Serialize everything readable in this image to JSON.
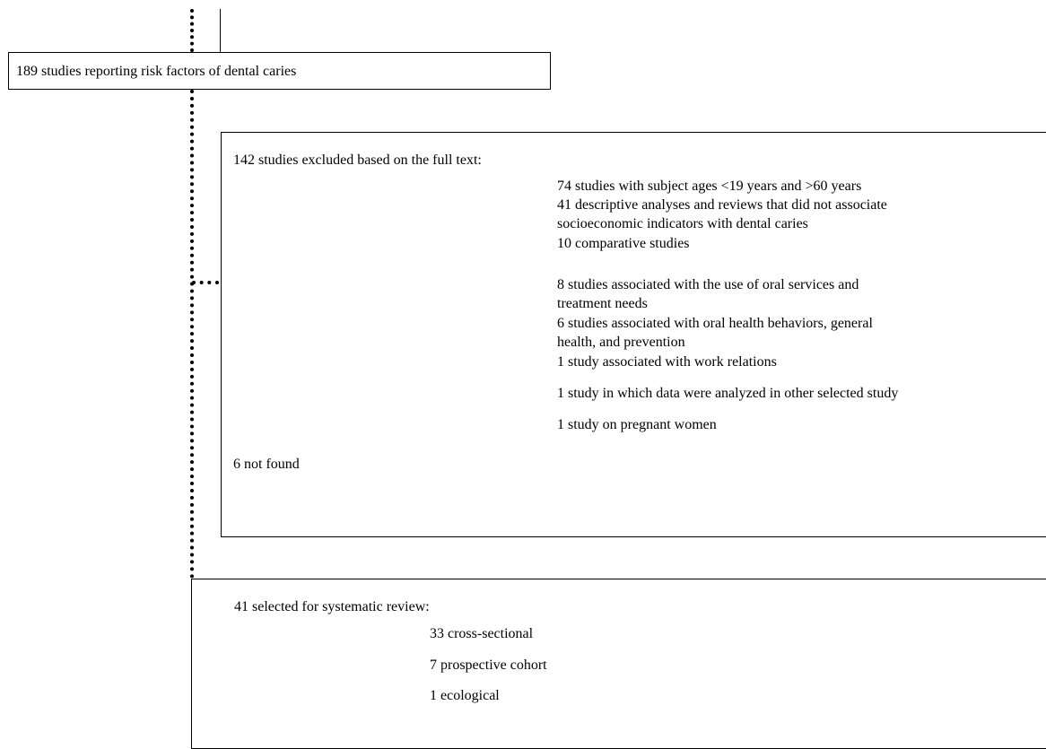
{
  "flowchart": {
    "identified_box": {
      "text": "189 studies reporting risk factors of dental caries"
    },
    "excluded_box": {
      "header": "142 studies excluded based on the full text:",
      "reasons": [
        "74 studies with subject ages <19 years and >60 years",
        "41 descriptive analyses and reviews that did not associate",
        "socioeconomic indicators with dental caries",
        "10 comparative studies",
        "8 studies associated with the use of oral services and",
        "treatment needs",
        "6 studies associated with oral health behaviors, general",
        "health, and prevention",
        "1 study associated with work relations",
        "1 study in which data were analyzed in other selected study",
        "1 study on pregnant women"
      ],
      "footer": "6 not found"
    },
    "selected_box": {
      "header": "41 selected for systematic review:",
      "designs": [
        "33 cross-sectional",
        "7 prospective cohort",
        "1 ecological"
      ]
    }
  }
}
